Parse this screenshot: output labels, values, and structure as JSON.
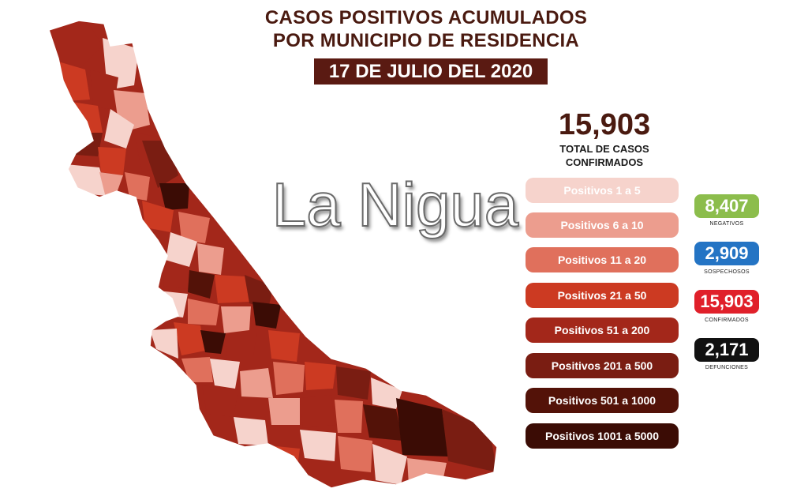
{
  "header": {
    "title_line1": "CASOS POSITIVOS ACUMULADOS",
    "title_line2": "POR MUNICIPIO DE RESIDENCIA",
    "date": "17 DE JULIO DEL 2020"
  },
  "total": {
    "number": "15,903",
    "caption_line1": "TOTAL DE CASOS",
    "caption_line2": "CONFIRMADOS"
  },
  "legend": [
    {
      "label": "Positivos 1 a 5",
      "color": "#f6d3cc"
    },
    {
      "label": "Positivos 6 a 10",
      "color": "#ec9d8e"
    },
    {
      "label": "Positivos 11 a 20",
      "color": "#e0705c"
    },
    {
      "label": "Positivos 21 a 50",
      "color": "#cc3a22"
    },
    {
      "label": "Positivos 51 a 200",
      "color": "#a3271a"
    },
    {
      "label": "Positivos 201 a 500",
      "color": "#7a1d12"
    },
    {
      "label": "Positivos 501 a 1000",
      "color": "#531208"
    },
    {
      "label": "Positivos 1001 a 5000",
      "color": "#3b0c05"
    }
  ],
  "stats": [
    {
      "value": "8,407",
      "label": "NEGATIVOS",
      "color": "#8cbd4c"
    },
    {
      "value": "2,909",
      "label": "SOSPECHOSOS",
      "color": "#2474c4"
    },
    {
      "value": "15,903",
      "label": "CONFIRMADOS",
      "color": "#e0202a"
    },
    {
      "value": "2,171",
      "label": "DEFUNCIONES",
      "color": "#111111"
    }
  ],
  "watermark": "La Nigua",
  "map_colors": {
    "c1": "#f6d3cc",
    "c2": "#ec9d8e",
    "c3": "#e0705c",
    "c4": "#cc3a22",
    "c5": "#a3271a",
    "c6": "#7a1d12",
    "c7": "#531208",
    "c8": "#3b0c05"
  }
}
